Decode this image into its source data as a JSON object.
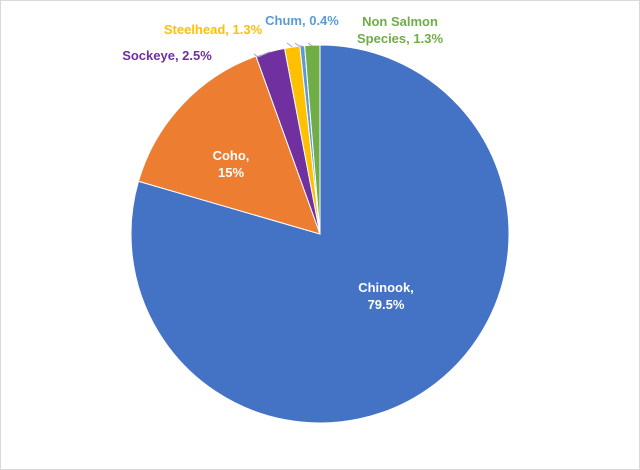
{
  "chart_data": {
    "type": "pie",
    "values": [
      79.5,
      15,
      2.5,
      1.3,
      0.4,
      1.3
    ],
    "value_labels": [
      "Chinook,\n79.5%",
      "Coho,\n15%",
      "Sockeye, 2.5%",
      "Steelhead, 1.3%",
      "Chum, 0.4%",
      "Non Salmon\nSpecies, 1.3%"
    ],
    "colors": [
      "#4472c4",
      "#ed7d31",
      "#7030a0",
      "#ffc000",
      "#5b9bd5",
      "#70ad47"
    ]
  }
}
